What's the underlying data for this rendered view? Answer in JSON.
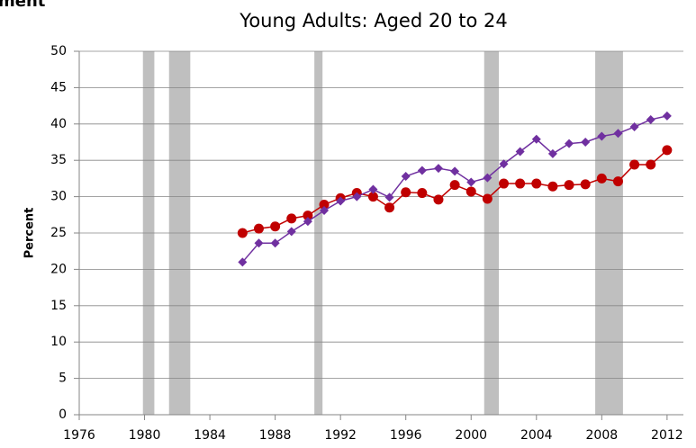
{
  "page_heading": "ment",
  "chart_data": {
    "type": "line",
    "title": "Young Adults: Aged 20 to 24",
    "y_label": "Percent",
    "xlim": [
      1976,
      2013
    ],
    "xticks": [
      1976,
      1980,
      1984,
      1988,
      1992,
      1996,
      2000,
      2004,
      2008,
      2012
    ],
    "ylim": [
      0,
      50
    ],
    "yticks": [
      0,
      5,
      10,
      15,
      20,
      25,
      30,
      35,
      40,
      45,
      50
    ],
    "grid": true,
    "shaded_ranges": [
      [
        1979.9,
        1980.6
      ],
      [
        1981.5,
        1982.8
      ],
      [
        1990.4,
        1990.9
      ],
      [
        2000.8,
        2001.7
      ],
      [
        2007.6,
        2009.3
      ]
    ],
    "shade_color": "#bfbfbf",
    "series": [
      {
        "color": "#c00000",
        "marker": "circle",
        "x": [
          1986,
          1987,
          1988,
          1989,
          1990,
          1991,
          1992,
          1993,
          1994,
          1995,
          1996,
          1997,
          1998,
          1999,
          2000,
          2001,
          2002,
          2003,
          2004,
          2005,
          2006,
          2007,
          2008,
          2009,
          2010,
          2011,
          2012
        ],
        "values": [
          25.0,
          25.6,
          25.9,
          27.0,
          27.4,
          28.9,
          29.8,
          30.5,
          30.0,
          28.5,
          30.6,
          30.5,
          29.6,
          31.6,
          30.7,
          29.7,
          31.8,
          31.8,
          31.8,
          31.4,
          31.6,
          31.7,
          32.5,
          32.1,
          34.4,
          34.4,
          36.4
        ]
      },
      {
        "color": "#7030a0",
        "marker": "diamond",
        "x": [
          1986,
          1987,
          1988,
          1989,
          1990,
          1991,
          1992,
          1993,
          1994,
          1995,
          1996,
          1997,
          1998,
          1999,
          2000,
          2001,
          2002,
          2003,
          2004,
          2005,
          2006,
          2007,
          2008,
          2009,
          2010,
          2011,
          2012
        ],
        "values": [
          21.0,
          23.6,
          23.6,
          25.2,
          26.6,
          28.1,
          29.4,
          30.0,
          31.0,
          29.9,
          32.8,
          33.6,
          33.9,
          33.5,
          32.0,
          32.6,
          34.5,
          36.2,
          37.9,
          35.9,
          37.3,
          37.5,
          38.3,
          38.7,
          39.6,
          40.6,
          41.1
        ]
      }
    ]
  }
}
